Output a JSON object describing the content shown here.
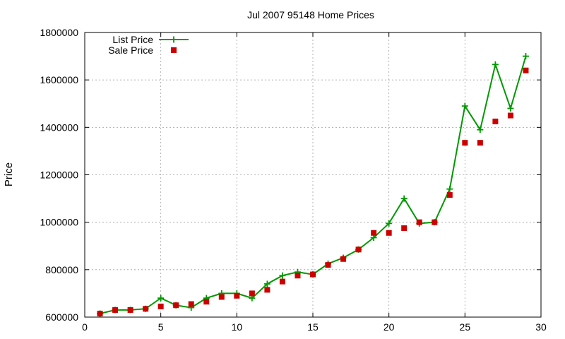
{
  "chart_data": {
    "type": "line",
    "title": "Jul 2007 95148 Home Prices",
    "xlabel": "",
    "ylabel": "Price",
    "xlim": [
      0,
      30
    ],
    "ylim": [
      600000,
      1800000
    ],
    "xticks": [
      0,
      5,
      10,
      15,
      20,
      25,
      30
    ],
    "yticks": [
      600000,
      800000,
      1000000,
      1200000,
      1400000,
      1600000,
      1800000
    ],
    "grid": true,
    "legend_position": "top-left",
    "series": [
      {
        "name": "List Price",
        "style": "line+plus",
        "color": "#009900",
        "x": [
          1,
          2,
          3,
          4,
          5,
          6,
          7,
          8,
          9,
          10,
          11,
          12,
          13,
          14,
          15,
          16,
          17,
          18,
          19,
          20,
          21,
          22,
          23,
          24,
          25,
          26,
          27,
          28,
          29
        ],
        "y": [
          615000,
          630000,
          630000,
          635000,
          680000,
          650000,
          640000,
          680000,
          700000,
          700000,
          680000,
          740000,
          775000,
          790000,
          780000,
          825000,
          850000,
          885000,
          935000,
          995000,
          1100000,
          995000,
          1000000,
          1140000,
          1490000,
          1390000,
          1665000,
          1480000,
          1700000
        ]
      },
      {
        "name": "Sale Price",
        "style": "square",
        "color": "#cc0000",
        "x": [
          1,
          2,
          3,
          4,
          5,
          6,
          7,
          8,
          9,
          10,
          11,
          12,
          13,
          14,
          15,
          16,
          17,
          18,
          19,
          20,
          21,
          22,
          23,
          24,
          25,
          26,
          27,
          28,
          29
        ],
        "y": [
          615000,
          630000,
          630000,
          635000,
          645000,
          650000,
          655000,
          665000,
          685000,
          690000,
          700000,
          715000,
          750000,
          775000,
          780000,
          820000,
          845000,
          885000,
          955000,
          955000,
          975000,
          1000000,
          1000000,
          1115000,
          1335000,
          1335000,
          1425000,
          1450000,
          1640000
        ]
      }
    ]
  }
}
